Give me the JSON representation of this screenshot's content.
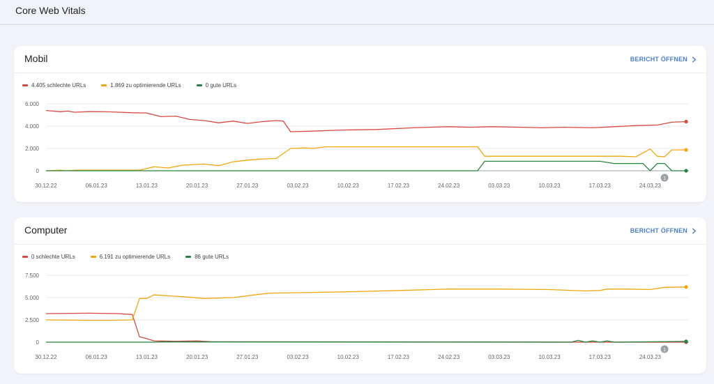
{
  "page": {
    "title": "Core Web Vitals"
  },
  "colors": {
    "poor": "#d9473f",
    "needs_improvement": "#f2a60c",
    "good": "#23843e",
    "link": "#4a7fd8"
  },
  "cards": [
    {
      "id": "mobil",
      "title": "Mobil",
      "report_label": "BERICHT ÖFFNEN",
      "legend": [
        "4.405 schlechte URLs",
        "1.869 zu optimierende URLs",
        "0 gute URLs"
      ],
      "annotation_badge": "1"
    },
    {
      "id": "computer",
      "title": "Computer",
      "report_label": "BERICHT ÖFFNEN",
      "legend": [
        "0 schlechte URLs",
        "6.191 zu optimierende URLs",
        "86 gute URLs"
      ],
      "annotation_badge": "1"
    }
  ],
  "chart_data": [
    {
      "type": "line",
      "title": "Mobil",
      "x_start": "30.12.22",
      "x_end": "29.03.23",
      "x_tick_labels": [
        "30.12.22",
        "06.01.23",
        "13.01.23",
        "20.01.23",
        "27.01.23",
        "03.02.23",
        "10.02.23",
        "17.02.23",
        "24.02.23",
        "03.03.23",
        "10.03.23",
        "17.03.23",
        "24.03.23"
      ],
      "y_ticks": [
        0,
        2000,
        4000,
        6000
      ],
      "y_tick_labels": [
        "0",
        "2.000",
        "4.000",
        "6.000"
      ],
      "ylim": [
        0,
        6000
      ],
      "grid": true,
      "series": [
        {
          "name": "4.405 schlechte URLs",
          "color": "#d9473f",
          "points": [
            [
              "30.12.22",
              5400
            ],
            [
              "01.01.23",
              5300
            ],
            [
              "02.01.23",
              5350
            ],
            [
              "03.01.23",
              5250
            ],
            [
              "05.01.23",
              5300
            ],
            [
              "08.01.23",
              5280
            ],
            [
              "11.01.23",
              5200
            ],
            [
              "13.01.23",
              5180
            ],
            [
              "15.01.23",
              4850
            ],
            [
              "17.01.23",
              4900
            ],
            [
              "19.01.23",
              4600
            ],
            [
              "21.01.23",
              4500
            ],
            [
              "23.01.23",
              4300
            ],
            [
              "25.01.23",
              4450
            ],
            [
              "27.01.23",
              4250
            ],
            [
              "29.01.23",
              4400
            ],
            [
              "31.01.23",
              4500
            ],
            [
              "01.02.23",
              4450
            ],
            [
              "02.02.23",
              3500
            ],
            [
              "05.02.23",
              3550
            ],
            [
              "09.02.23",
              3650
            ],
            [
              "14.02.23",
              3700
            ],
            [
              "19.02.23",
              3850
            ],
            [
              "24.02.23",
              3950
            ],
            [
              "27.02.23",
              3900
            ],
            [
              "02.03.23",
              3950
            ],
            [
              "06.03.23",
              3900
            ],
            [
              "09.03.23",
              3850
            ],
            [
              "12.03.23",
              3900
            ],
            [
              "16.03.23",
              3850
            ],
            [
              "19.03.23",
              3950
            ],
            [
              "22.03.23",
              4050
            ],
            [
              "25.03.23",
              4100
            ],
            [
              "27.03.23",
              4350
            ],
            [
              "29.03.23",
              4405
            ]
          ]
        },
        {
          "name": "1.869 zu optimierende URLs",
          "color": "#f2a60c",
          "points": [
            [
              "30.12.22",
              0
            ],
            [
              "01.01.23",
              50
            ],
            [
              "02.01.23",
              0
            ],
            [
              "03.01.23",
              50
            ],
            [
              "12.01.23",
              50
            ],
            [
              "14.01.23",
              350
            ],
            [
              "16.01.23",
              250
            ],
            [
              "18.01.23",
              500
            ],
            [
              "21.01.23",
              600
            ],
            [
              "23.01.23",
              450
            ],
            [
              "25.01.23",
              800
            ],
            [
              "27.01.23",
              950
            ],
            [
              "29.01.23",
              1050
            ],
            [
              "31.01.23",
              1100
            ],
            [
              "02.02.23",
              2000
            ],
            [
              "04.02.23",
              2050
            ],
            [
              "05.02.23",
              2000
            ],
            [
              "07.02.23",
              2150
            ],
            [
              "12.02.23",
              2150
            ],
            [
              "18.02.23",
              2150
            ],
            [
              "24.02.23",
              2150
            ],
            [
              "28.02.23",
              2150
            ],
            [
              "01.03.23",
              1300
            ],
            [
              "10.03.23",
              1300
            ],
            [
              "18.03.23",
              1300
            ],
            [
              "20.03.23",
              1300
            ],
            [
              "22.03.23",
              1250
            ],
            [
              "24.03.23",
              1950
            ],
            [
              "25.03.23",
              1300
            ],
            [
              "26.03.23",
              1250
            ],
            [
              "27.03.23",
              1869
            ],
            [
              "29.03.23",
              1869
            ]
          ]
        },
        {
          "name": "0 gute URLs",
          "color": "#23843e",
          "points": [
            [
              "30.12.22",
              0
            ],
            [
              "28.02.23",
              0
            ],
            [
              "01.03.23",
              850
            ],
            [
              "10.03.23",
              850
            ],
            [
              "17.03.23",
              850
            ],
            [
              "19.03.23",
              650
            ],
            [
              "23.03.23",
              650
            ],
            [
              "24.03.23",
              0
            ],
            [
              "25.03.23",
              650
            ],
            [
              "26.03.23",
              650
            ],
            [
              "27.03.23",
              0
            ],
            [
              "29.03.23",
              0
            ]
          ]
        }
      ]
    },
    {
      "type": "line",
      "title": "Computer",
      "x_start": "30.12.22",
      "x_end": "29.03.23",
      "x_tick_labels": [
        "30.12.22",
        "06.01.23",
        "13.01.23",
        "20.01.23",
        "27.01.23",
        "03.02.23",
        "10.02.23",
        "17.02.23",
        "24.02.23",
        "03.03.23",
        "10.03.23",
        "17.03.23",
        "24.03.23"
      ],
      "y_ticks": [
        0,
        2500,
        5000,
        7500
      ],
      "y_tick_labels": [
        "0",
        "2.500",
        "5.000",
        "7.500"
      ],
      "ylim": [
        0,
        7500
      ],
      "grid": true,
      "series": [
        {
          "name": "0 schlechte URLs",
          "color": "#d9473f",
          "points": [
            [
              "30.12.22",
              3200
            ],
            [
              "05.01.23",
              3250
            ],
            [
              "09.01.23",
              3200
            ],
            [
              "11.01.23",
              3100
            ],
            [
              "12.01.23",
              600
            ],
            [
              "13.01.23",
              400
            ],
            [
              "14.01.23",
              150
            ],
            [
              "17.01.23",
              100
            ],
            [
              "20.01.23",
              150
            ],
            [
              "22.01.23",
              50
            ],
            [
              "29.03.23",
              0
            ]
          ]
        },
        {
          "name": "6.191 zu optimierende URLs",
          "color": "#f2a60c",
          "points": [
            [
              "30.12.22",
              2500
            ],
            [
              "05.01.23",
              2450
            ],
            [
              "08.01.23",
              2450
            ],
            [
              "11.01.23",
              2500
            ],
            [
              "12.01.23",
              4900
            ],
            [
              "13.01.23",
              4900
            ],
            [
              "14.01.23",
              5300
            ],
            [
              "18.01.23",
              5100
            ],
            [
              "21.01.23",
              4900
            ],
            [
              "25.01.23",
              5000
            ],
            [
              "28.01.23",
              5300
            ],
            [
              "30.01.23",
              5500
            ],
            [
              "03.02.23",
              5550
            ],
            [
              "10.02.23",
              5650
            ],
            [
              "17.02.23",
              5800
            ],
            [
              "24.02.23",
              5950
            ],
            [
              "03.03.23",
              5950
            ],
            [
              "10.03.23",
              5900
            ],
            [
              "15.03.23",
              5750
            ],
            [
              "17.03.23",
              5800
            ],
            [
              "18.03.23",
              5950
            ],
            [
              "21.03.23",
              5950
            ],
            [
              "24.03.23",
              5900
            ],
            [
              "26.03.23",
              6150
            ],
            [
              "29.03.23",
              6191
            ]
          ]
        },
        {
          "name": "86 gute URLs",
          "color": "#23843e",
          "points": [
            [
              "30.12.22",
              0
            ],
            [
              "14.01.23",
              0
            ],
            [
              "15.01.23",
              50
            ],
            [
              "13.03.23",
              0
            ],
            [
              "14.03.23",
              200
            ],
            [
              "15.03.23",
              0
            ],
            [
              "16.03.23",
              150
            ],
            [
              "17.03.23",
              0
            ],
            [
              "18.03.23",
              150
            ],
            [
              "19.03.23",
              0
            ],
            [
              "29.03.23",
              86
            ]
          ]
        }
      ]
    }
  ]
}
